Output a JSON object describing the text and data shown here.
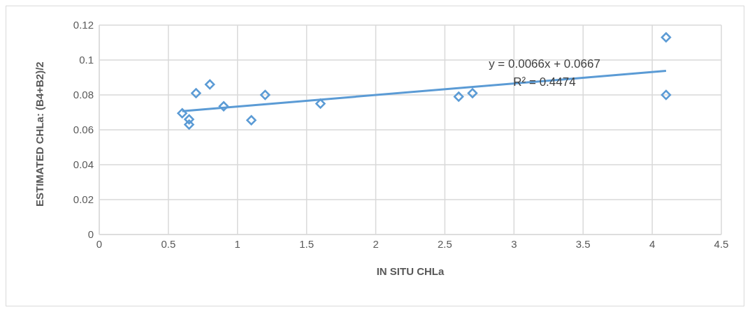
{
  "chart_data": {
    "type": "scatter",
    "xlabel": "IN SITU CHLa",
    "ylabel": "ESTIMATED CHLa: (B4+B2)/2",
    "xlim": [
      0,
      4.5
    ],
    "xticks": [
      0,
      0.5,
      1,
      1.5,
      2,
      2.5,
      3,
      3.5,
      4,
      4.5
    ],
    "ylim": [
      0,
      0.12
    ],
    "yticks": [
      0,
      0.02,
      0.04,
      0.06,
      0.08,
      0.1,
      0.12
    ],
    "grid": true,
    "legend": false,
    "series": [
      {
        "color": "#5b9bd5",
        "marker": "diamond",
        "x": [
          0.6,
          0.65,
          0.65,
          0.7,
          0.8,
          0.9,
          1.1,
          1.2,
          1.6,
          2.6,
          2.7,
          4.1,
          4.1
        ],
        "values": [
          0.0695,
          0.066,
          0.063,
          0.081,
          0.086,
          0.0735,
          0.0655,
          0.08,
          0.075,
          0.079,
          0.081,
          0.113,
          0.08
        ]
      },
      {
        "type": "line",
        "color": "#5b9bd5",
        "marker": "none",
        "line_style": "solid",
        "x": [
          0.6,
          4.1
        ],
        "values": [
          0.0707,
          0.0938
        ]
      }
    ],
    "annotations": [
      "y = 0.0066x + 0.0667",
      "R² = 0.4474"
    ]
  }
}
